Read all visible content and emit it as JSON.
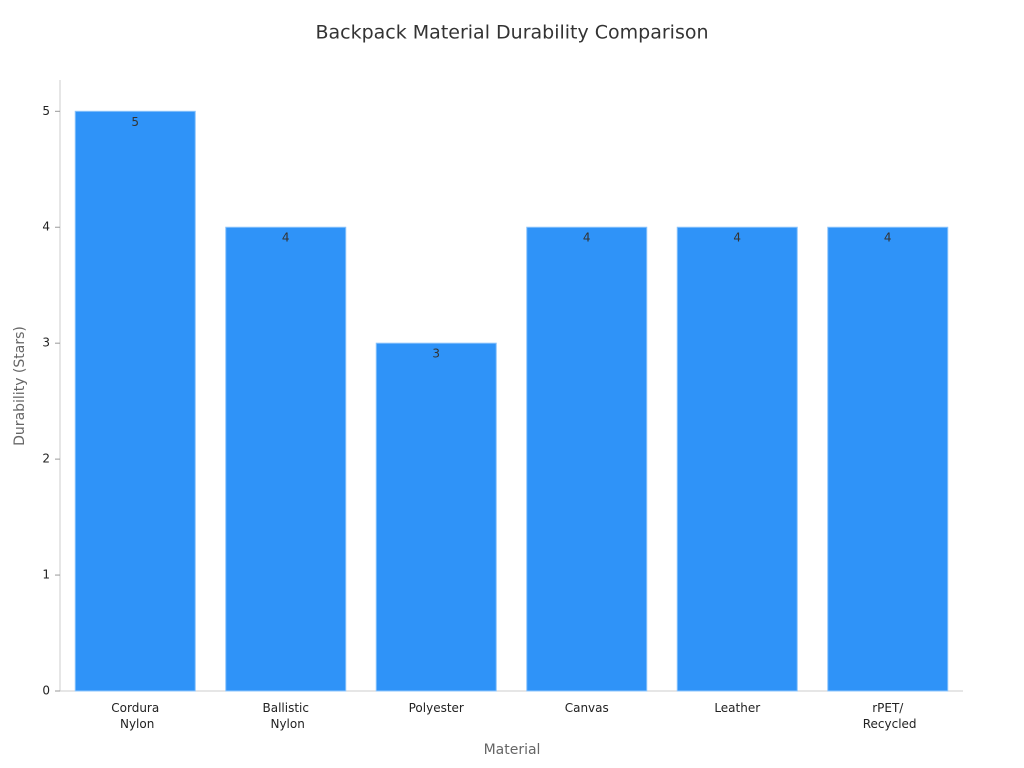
{
  "chart_data": {
    "type": "bar",
    "title": "Backpack Material Durability Comparison",
    "x_label": "Material",
    "y_label": "Durability (Stars)",
    "categories": [
      "Cordura Nylon",
      "Ballistic Nylon",
      "Polyester",
      "Canvas",
      "Leather",
      "rPET/ Recycled"
    ],
    "values": [
      5,
      4,
      3,
      4,
      4,
      4
    ],
    "color": "#2f93f8",
    "ylim": [
      0,
      5.27
    ],
    "yticks": [
      0,
      1,
      2,
      3,
      4,
      5
    ],
    "grid": false
  }
}
